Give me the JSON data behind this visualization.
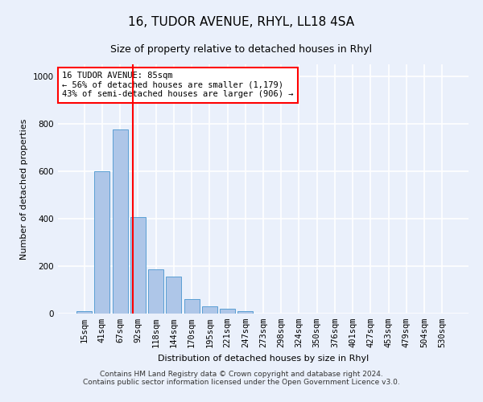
{
  "title": "16, TUDOR AVENUE, RHYL, LL18 4SA",
  "subtitle": "Size of property relative to detached houses in Rhyl",
  "xlabel": "Distribution of detached houses by size in Rhyl",
  "ylabel": "Number of detached properties",
  "categories": [
    "15sqm",
    "41sqm",
    "67sqm",
    "92sqm",
    "118sqm",
    "144sqm",
    "170sqm",
    "195sqm",
    "221sqm",
    "247sqm",
    "273sqm",
    "298sqm",
    "324sqm",
    "350sqm",
    "376sqm",
    "401sqm",
    "427sqm",
    "453sqm",
    "479sqm",
    "504sqm",
    "530sqm"
  ],
  "values": [
    10,
    600,
    775,
    405,
    185,
    155,
    60,
    30,
    20,
    10,
    0,
    0,
    0,
    0,
    0,
    0,
    0,
    0,
    0,
    0,
    0
  ],
  "bar_color": "#aec6e8",
  "bar_edge_color": "#5a9fd4",
  "vline_x": 2.73,
  "vline_color": "red",
  "annotation_text": "16 TUDOR AVENUE: 85sqm\n← 56% of detached houses are smaller (1,179)\n43% of semi-detached houses are larger (906) →",
  "annotation_box_color": "white",
  "annotation_box_edge_color": "red",
  "ylim": [
    0,
    1050
  ],
  "yticks": [
    0,
    200,
    400,
    600,
    800,
    1000
  ],
  "footer": "Contains HM Land Registry data © Crown copyright and database right 2024.\nContains public sector information licensed under the Open Government Licence v3.0.",
  "bg_color": "#eaf0fb",
  "grid_color": "white",
  "title_fontsize": 11,
  "subtitle_fontsize": 9,
  "axis_label_fontsize": 8,
  "tick_fontsize": 7.5,
  "annotation_fontsize": 7.5,
  "footer_fontsize": 6.5
}
